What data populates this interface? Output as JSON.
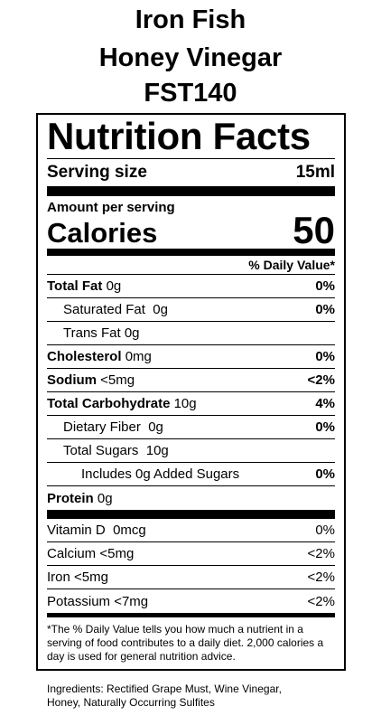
{
  "header": {
    "lines": [
      "Iron Fish",
      "Honey Vinegar",
      "FST140"
    ]
  },
  "label": {
    "title": "Nutrition Facts",
    "serving_label": "Serving size",
    "serving_value": "15ml",
    "amount_per_serving": "Amount per serving",
    "calories_label": "Calories",
    "calories_value": "50",
    "dv_header": "% Daily Value*",
    "nutrients": [
      {
        "name": "Total Fat",
        "amount": "0g",
        "dv": "0%"
      },
      {
        "name": "Saturated Fat",
        "amount": "0g",
        "dv": "0%"
      },
      {
        "name": "Trans Fat",
        "amount": "0g"
      },
      {
        "name": "Cholesterol",
        "amount": "0mg",
        "dv": "0%"
      },
      {
        "name": "Sodium",
        "amount": "<5mg",
        "dv": "<2%"
      },
      {
        "name": "Total Carbohydrate",
        "amount": "10g",
        "dv": "4%"
      },
      {
        "name": "Dietary Fiber",
        "amount": "0g",
        "dv": "0%"
      },
      {
        "name": "Total Sugars",
        "amount": "10g"
      },
      {
        "name": "Includes 0g Added Sugars",
        "dv": "0%"
      },
      {
        "name": "Protein",
        "amount": "0g"
      }
    ],
    "vitamins": [
      {
        "name": "Vitamin D",
        "amount": "0mcg",
        "dv": "0%"
      },
      {
        "name": "Calcium",
        "amount": "<5mg",
        "dv": "<2%"
      },
      {
        "name": "Iron",
        "amount": "<5mg",
        "dv": "<2%"
      },
      {
        "name": "Potassium",
        "amount": "<7mg",
        "dv": "<2%"
      }
    ],
    "footnote": "*The % Daily Value tells you how much a nutrient in a serving of food contributes to a daily diet. 2,000 calories a day is used for general nutrition advice."
  },
  "ingredients": "Ingredients: Rectified Grape Must, Wine Vinegar, Honey, Naturally Occurring Sulfites"
}
